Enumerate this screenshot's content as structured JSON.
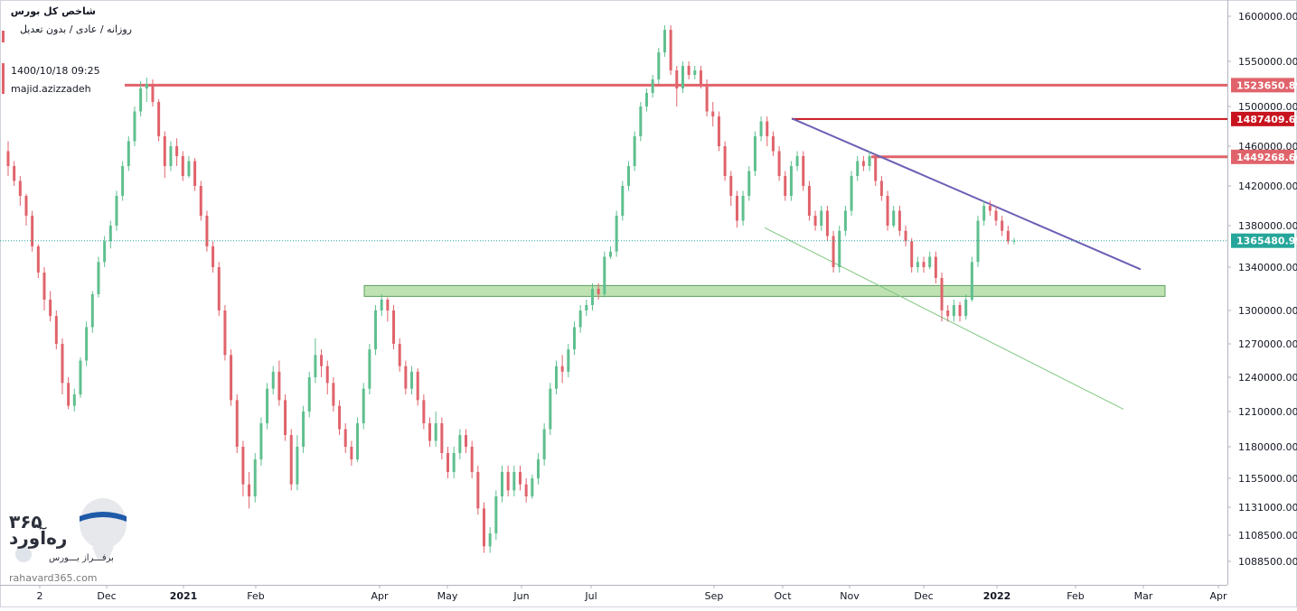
{
  "legend": {
    "title": "شاخص کل بورس",
    "subtitle": "روزانه / عادی / بدون تعدیل",
    "datetime": "1400/10/18 09:25",
    "author": "majid.azizzadeh"
  },
  "watermark": {
    "digits": "۳۶۵",
    "name": "ره‌آورد",
    "tagline": "برفـــراز بـــورس",
    "url": "rahavard365.com"
  },
  "colors": {
    "up": "#5fbf8f",
    "down": "#e0636b",
    "resistance": "#e0636b",
    "resistance_dark": "#c8141e",
    "trend_upper": "#6b5fb5",
    "trend_lower": "#7fc77f",
    "zone_fill": "#a9d89a",
    "last_price": "#26a69a"
  },
  "chart_data": {
    "type": "candlestick",
    "y_axis": {
      "position": "right",
      "ticks": [
        1600000,
        1550000,
        1500000,
        1460000,
        1420000,
        1380000,
        1340000,
        1300000,
        1270000,
        1240000,
        1210000,
        1180000,
        1155000,
        1131000,
        1108500,
        1088500
      ],
      "tick_labels": [
        "1600000.00",
        "1550000.00",
        "1500000.00",
        "1460000.00",
        "1420000.00",
        "1380000.00",
        "1340000.00",
        "1300000.00",
        "1270000.00",
        "1240000.00",
        "1210000.00",
        "1180000.00",
        "1155000.00",
        "1131000.00",
        "1108500.00",
        "1088500.00"
      ]
    },
    "x_axis": {
      "labels": [
        "2",
        "Dec",
        "2021",
        "Feb",
        "Apr",
        "May",
        "Jun",
        "Jul",
        "Sep",
        "Oct",
        "Nov",
        "Dec",
        "2022",
        "Feb",
        "Mar",
        "Apr"
      ],
      "bold": [
        "2021",
        "2022"
      ]
    },
    "price_labels": [
      {
        "value": 1523650.89,
        "label": "1523650.89",
        "style": "resistance"
      },
      {
        "value": 1487409.65,
        "label": "1487409.65",
        "style": "resistance_dark"
      },
      {
        "value": 1449268.66,
        "label": "1449268.66",
        "style": "resistance"
      },
      {
        "value": 1365480.99,
        "label": "1365480.99",
        "style": "last_price"
      }
    ],
    "horizontal_lines": [
      {
        "value": 1523650.89,
        "from": "Dec",
        "style": "resistance"
      },
      {
        "value": 1487409.65,
        "from": "Oct",
        "style": "resistance_dark"
      },
      {
        "value": 1449268.66,
        "from": "Nov",
        "style": "resistance"
      }
    ],
    "zone": {
      "low": 1313000,
      "high": 1323000,
      "from": "Apr",
      "to": "Mar"
    },
    "trend_lines": [
      {
        "from": {
          "date": "2021-10-03",
          "value": 1488000
        },
        "to": {
          "date": "2022-02-25",
          "value": 1338000
        },
        "style": "trend_upper"
      },
      {
        "from": {
          "date": "2021-09-22",
          "value": 1378000
        },
        "to": {
          "date": "2022-02-15",
          "value": 1212000
        },
        "style": "trend_lower"
      }
    ],
    "candles": [
      [
        1455000,
        1440000,
        1465000,
        1430000
      ],
      [
        1440000,
        1425000,
        1445000,
        1420000
      ],
      [
        1425000,
        1410000,
        1430000,
        1400000
      ],
      [
        1410000,
        1390000,
        1412000,
        1380000
      ],
      [
        1390000,
        1360000,
        1395000,
        1355000
      ],
      [
        1360000,
        1335000,
        1362000,
        1330000
      ],
      [
        1335000,
        1310000,
        1340000,
        1300000
      ],
      [
        1310000,
        1295000,
        1318000,
        1290000
      ],
      [
        1295000,
        1270000,
        1300000,
        1265000
      ],
      [
        1270000,
        1235000,
        1275000,
        1225000
      ],
      [
        1235000,
        1215000,
        1240000,
        1212000
      ],
      [
        1215000,
        1225000,
        1230000,
        1210000
      ],
      [
        1225000,
        1255000,
        1258000,
        1222000
      ],
      [
        1255000,
        1285000,
        1290000,
        1250000
      ],
      [
        1285000,
        1315000,
        1318000,
        1280000
      ],
      [
        1315000,
        1345000,
        1350000,
        1312000
      ],
      [
        1345000,
        1365000,
        1370000,
        1340000
      ],
      [
        1365000,
        1380000,
        1385000,
        1358000
      ],
      [
        1380000,
        1410000,
        1415000,
        1375000
      ],
      [
        1410000,
        1440000,
        1445000,
        1405000
      ],
      [
        1440000,
        1465000,
        1470000,
        1435000
      ],
      [
        1465000,
        1495000,
        1500000,
        1460000
      ],
      [
        1495000,
        1520000,
        1528000,
        1490000
      ],
      [
        1520000,
        1525000,
        1532000,
        1505000
      ],
      [
        1525000,
        1505000,
        1530000,
        1500000
      ],
      [
        1505000,
        1470000,
        1508000,
        1465000
      ],
      [
        1470000,
        1440000,
        1475000,
        1428000
      ],
      [
        1440000,
        1460000,
        1465000,
        1435000
      ],
      [
        1460000,
        1450000,
        1468000,
        1440000
      ],
      [
        1450000,
        1430000,
        1455000,
        1425000
      ],
      [
        1430000,
        1445000,
        1450000,
        1428000
      ],
      [
        1445000,
        1420000,
        1448000,
        1415000
      ],
      [
        1420000,
        1390000,
        1425000,
        1385000
      ],
      [
        1390000,
        1360000,
        1395000,
        1355000
      ],
      [
        1360000,
        1340000,
        1365000,
        1335000
      ],
      [
        1340000,
        1300000,
        1345000,
        1295000
      ],
      [
        1300000,
        1260000,
        1305000,
        1255000
      ],
      [
        1260000,
        1220000,
        1265000,
        1215000
      ],
      [
        1220000,
        1180000,
        1225000,
        1175000
      ],
      [
        1180000,
        1150000,
        1185000,
        1140000
      ],
      [
        1150000,
        1140000,
        1160000,
        1130000
      ],
      [
        1140000,
        1170000,
        1175000,
        1135000
      ],
      [
        1170000,
        1200000,
        1205000,
        1165000
      ],
      [
        1200000,
        1230000,
        1235000,
        1195000
      ],
      [
        1230000,
        1245000,
        1250000,
        1225000
      ],
      [
        1245000,
        1220000,
        1255000,
        1215000
      ],
      [
        1220000,
        1190000,
        1225000,
        1185000
      ],
      [
        1190000,
        1150000,
        1195000,
        1145000
      ],
      [
        1150000,
        1180000,
        1190000,
        1145000
      ],
      [
        1180000,
        1210000,
        1215000,
        1175000
      ],
      [
        1210000,
        1240000,
        1245000,
        1205000
      ],
      [
        1240000,
        1260000,
        1275000,
        1235000
      ],
      [
        1260000,
        1250000,
        1265000,
        1240000
      ],
      [
        1250000,
        1235000,
        1255000,
        1225000
      ],
      [
        1235000,
        1215000,
        1240000,
        1210000
      ],
      [
        1215000,
        1195000,
        1220000,
        1190000
      ],
      [
        1195000,
        1180000,
        1200000,
        1175000
      ],
      [
        1180000,
        1170000,
        1185000,
        1165000
      ],
      [
        1170000,
        1200000,
        1205000,
        1168000
      ],
      [
        1200000,
        1230000,
        1235000,
        1195000
      ],
      [
        1230000,
        1265000,
        1270000,
        1225000
      ],
      [
        1265000,
        1300000,
        1305000,
        1260000
      ],
      [
        1300000,
        1310000,
        1315000,
        1295000
      ],
      [
        1310000,
        1300000,
        1312000,
        1290000
      ],
      [
        1300000,
        1270000,
        1305000,
        1265000
      ],
      [
        1270000,
        1250000,
        1275000,
        1245000
      ],
      [
        1250000,
        1230000,
        1255000,
        1225000
      ],
      [
        1230000,
        1245000,
        1250000,
        1225000
      ],
      [
        1245000,
        1220000,
        1248000,
        1215000
      ],
      [
        1220000,
        1200000,
        1225000,
        1195000
      ],
      [
        1200000,
        1185000,
        1205000,
        1180000
      ],
      [
        1185000,
        1200000,
        1210000,
        1180000
      ],
      [
        1200000,
        1175000,
        1205000,
        1170000
      ],
      [
        1175000,
        1160000,
        1180000,
        1155000
      ],
      [
        1160000,
        1175000,
        1180000,
        1155000
      ],
      [
        1175000,
        1190000,
        1195000,
        1170000
      ],
      [
        1190000,
        1180000,
        1195000,
        1175000
      ],
      [
        1180000,
        1160000,
        1185000,
        1155000
      ],
      [
        1160000,
        1130000,
        1165000,
        1125000
      ],
      [
        1130000,
        1100000,
        1135000,
        1095000
      ],
      [
        1100000,
        1110000,
        1115000,
        1095000
      ],
      [
        1110000,
        1140000,
        1145000,
        1105000
      ],
      [
        1140000,
        1160000,
        1165000,
        1135000
      ],
      [
        1160000,
        1145000,
        1165000,
        1140000
      ],
      [
        1145000,
        1160000,
        1165000,
        1140000
      ],
      [
        1160000,
        1150000,
        1165000,
        1145000
      ],
      [
        1150000,
        1140000,
        1155000,
        1135000
      ],
      [
        1140000,
        1155000,
        1158000,
        1138000
      ],
      [
        1155000,
        1170000,
        1175000,
        1150000
      ],
      [
        1170000,
        1195000,
        1200000,
        1165000
      ],
      [
        1195000,
        1230000,
        1235000,
        1190000
      ],
      [
        1230000,
        1250000,
        1255000,
        1225000
      ],
      [
        1250000,
        1245000,
        1260000,
        1235000
      ],
      [
        1245000,
        1265000,
        1270000,
        1240000
      ],
      [
        1265000,
        1285000,
        1290000,
        1260000
      ],
      [
        1285000,
        1300000,
        1305000,
        1280000
      ],
      [
        1300000,
        1305000,
        1310000,
        1295000
      ],
      [
        1305000,
        1320000,
        1325000,
        1300000
      ],
      [
        1320000,
        1315000,
        1325000,
        1310000
      ],
      [
        1315000,
        1350000,
        1355000,
        1312000
      ],
      [
        1350000,
        1355000,
        1360000,
        1348000
      ],
      [
        1355000,
        1390000,
        1395000,
        1350000
      ],
      [
        1390000,
        1420000,
        1425000,
        1385000
      ],
      [
        1420000,
        1440000,
        1445000,
        1415000
      ],
      [
        1440000,
        1470000,
        1475000,
        1435000
      ],
      [
        1470000,
        1500000,
        1505000,
        1465000
      ],
      [
        1500000,
        1515000,
        1520000,
        1495000
      ],
      [
        1515000,
        1530000,
        1535000,
        1510000
      ],
      [
        1530000,
        1560000,
        1565000,
        1525000
      ],
      [
        1560000,
        1585000,
        1590000,
        1555000
      ],
      [
        1585000,
        1540000,
        1590000,
        1535000
      ],
      [
        1540000,
        1520000,
        1545000,
        1500000
      ],
      [
        1520000,
        1545000,
        1550000,
        1515000
      ],
      [
        1545000,
        1535000,
        1550000,
        1530000
      ],
      [
        1535000,
        1540000,
        1545000,
        1530000
      ],
      [
        1540000,
        1525000,
        1545000,
        1520000
      ],
      [
        1525000,
        1495000,
        1530000,
        1490000
      ],
      [
        1495000,
        1490000,
        1505000,
        1480000
      ],
      [
        1490000,
        1460000,
        1495000,
        1455000
      ],
      [
        1460000,
        1430000,
        1465000,
        1425000
      ],
      [
        1430000,
        1410000,
        1435000,
        1400000
      ],
      [
        1410000,
        1385000,
        1415000,
        1378000
      ],
      [
        1385000,
        1410000,
        1415000,
        1380000
      ],
      [
        1410000,
        1435000,
        1440000,
        1405000
      ],
      [
        1435000,
        1470000,
        1475000,
        1430000
      ],
      [
        1470000,
        1485000,
        1490000,
        1465000
      ],
      [
        1485000,
        1470000,
        1490000,
        1460000
      ],
      [
        1470000,
        1455000,
        1475000,
        1450000
      ],
      [
        1455000,
        1430000,
        1460000,
        1425000
      ],
      [
        1430000,
        1410000,
        1435000,
        1405000
      ],
      [
        1410000,
        1440000,
        1445000,
        1405000
      ],
      [
        1440000,
        1450000,
        1455000,
        1435000
      ],
      [
        1450000,
        1420000,
        1455000,
        1415000
      ],
      [
        1420000,
        1390000,
        1425000,
        1385000
      ],
      [
        1390000,
        1380000,
        1395000,
        1375000
      ],
      [
        1380000,
        1395000,
        1400000,
        1375000
      ],
      [
        1395000,
        1370000,
        1400000,
        1365000
      ],
      [
        1370000,
        1340000,
        1375000,
        1335000
      ],
      [
        1340000,
        1375000,
        1380000,
        1335000
      ],
      [
        1375000,
        1395000,
        1400000,
        1370000
      ],
      [
        1395000,
        1430000,
        1435000,
        1390000
      ],
      [
        1430000,
        1445000,
        1450000,
        1425000
      ],
      [
        1445000,
        1440000,
        1450000,
        1435000
      ],
      [
        1440000,
        1450000,
        1455000,
        1435000
      ],
      [
        1450000,
        1425000,
        1452000,
        1420000
      ],
      [
        1425000,
        1410000,
        1430000,
        1405000
      ],
      [
        1410000,
        1380000,
        1415000,
        1375000
      ],
      [
        1380000,
        1395000,
        1400000,
        1378000
      ],
      [
        1395000,
        1375000,
        1400000,
        1370000
      ],
      [
        1375000,
        1365000,
        1380000,
        1360000
      ],
      [
        1365000,
        1340000,
        1368000,
        1335000
      ],
      [
        1340000,
        1345000,
        1350000,
        1335000
      ],
      [
        1345000,
        1340000,
        1350000,
        1335000
      ],
      [
        1340000,
        1350000,
        1355000,
        1338000
      ],
      [
        1350000,
        1330000,
        1355000,
        1325000
      ],
      [
        1330000,
        1300000,
        1335000,
        1290000
      ],
      [
        1300000,
        1295000,
        1305000,
        1290000
      ],
      [
        1295000,
        1305000,
        1310000,
        1290000
      ],
      [
        1305000,
        1295000,
        1308000,
        1290000
      ],
      [
        1295000,
        1310000,
        1315000,
        1292000
      ],
      [
        1310000,
        1345000,
        1350000,
        1308000
      ],
      [
        1345000,
        1385000,
        1390000,
        1340000
      ],
      [
        1385000,
        1400000,
        1405000,
        1380000
      ],
      [
        1400000,
        1395000,
        1405000,
        1390000
      ],
      [
        1395000,
        1385000,
        1400000,
        1380000
      ],
      [
        1385000,
        1375000,
        1390000,
        1370000
      ],
      [
        1375000,
        1365000,
        1380000,
        1362000
      ],
      [
        1365000,
        1365480,
        1368000,
        1362000
      ]
    ]
  }
}
